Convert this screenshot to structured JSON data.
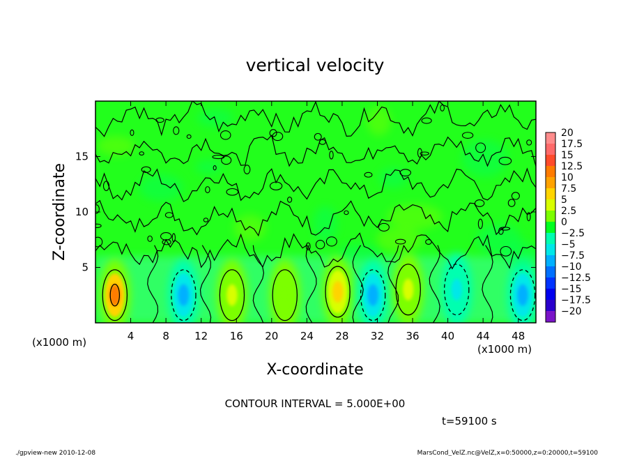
{
  "chart_data": {
    "type": "heatmap",
    "title": "vertical velocity",
    "xlabel": "X-coordinate",
    "ylabel": "Z-coordinate",
    "x_unit_left": "(x1000 m)",
    "x_unit_right": "(x1000 m)",
    "xlim": [
      0,
      50
    ],
    "ylim": [
      0,
      20
    ],
    "x_ticks": [
      4,
      8,
      12,
      16,
      20,
      24,
      28,
      32,
      36,
      40,
      44,
      48
    ],
    "y_ticks": [
      5,
      10,
      15
    ],
    "contour_interval_label": "CONTOUR INTERVAL = 5.000E+00",
    "time_label": "t=59100 s",
    "colorbar": {
      "labels": [
        "20",
        "17.5",
        "15",
        "12.5",
        "10",
        "7.5",
        "5",
        "2.5",
        "0",
        "−2.5",
        "−5",
        "−7.5",
        "−10",
        "−12.5",
        "−15",
        "−17.5",
        "−20"
      ],
      "colors": [
        "#ff8c8c",
        "#ff6a6a",
        "#ff4b2b",
        "#ff7b00",
        "#ffa200",
        "#ffd400",
        "#d8ff00",
        "#7cff00",
        "#00ff20",
        "#00ffb0",
        "#00e8e8",
        "#00b0ff",
        "#0070ff",
        "#0033ff",
        "#0000ee",
        "#2a00cc",
        "#7a14c8"
      ]
    },
    "features": [
      {
        "type": "updraft",
        "x": 2.2,
        "z": 2.5,
        "w": 12.5
      },
      {
        "type": "downdraft",
        "x": 10,
        "z": 2.5,
        "w": -7.5
      },
      {
        "type": "updraft",
        "x": 15.5,
        "z": 2.5,
        "w": 5
      },
      {
        "type": "updraft",
        "x": 21.5,
        "z": 2.5,
        "w": 2.5
      },
      {
        "type": "updraft",
        "x": 27.5,
        "z": 2.8,
        "w": 7.5
      },
      {
        "type": "downdraft",
        "x": 31.5,
        "z": 2.5,
        "w": -7.5
      },
      {
        "type": "updraft",
        "x": 35.5,
        "z": 3,
        "w": 5
      },
      {
        "type": "downdraft",
        "x": 41,
        "z": 3,
        "w": -5
      },
      {
        "type": "downdraft",
        "x": 48.5,
        "z": 2.5,
        "w": -7.5
      }
    ]
  },
  "footer": {
    "left": "./gpview-new  2010-12-08",
    "right": "MarsCond_VelZ.nc@VelZ,x=0:50000,z=0:20000,t=59100"
  }
}
